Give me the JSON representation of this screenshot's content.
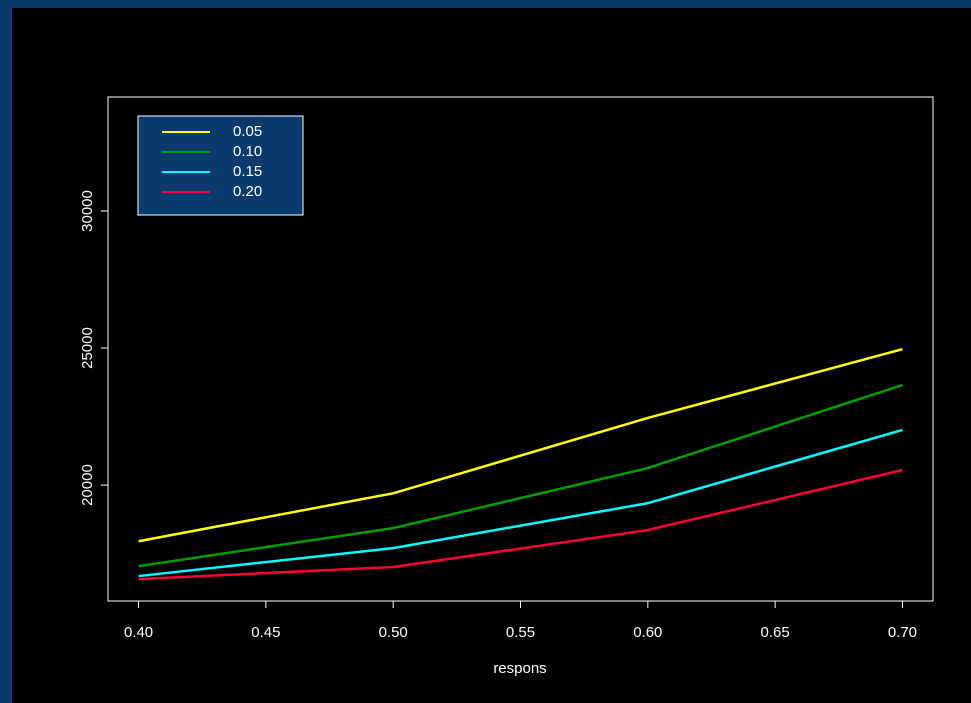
{
  "chart_data": {
    "type": "line",
    "xlabel": "respons",
    "x": [
      0.4,
      0.5,
      0.6,
      0.7
    ],
    "series": [
      {
        "name": "0.05",
        "color": "#ffff00",
        "values": [
          17950,
          19700,
          22450,
          24960
        ]
      },
      {
        "name": "0.10",
        "color": "#00a000",
        "values": [
          17040,
          18430,
          20620,
          23650
        ]
      },
      {
        "name": "0.15",
        "color": "#00ffff",
        "values": [
          16680,
          17700,
          19340,
          22010
        ]
      },
      {
        "name": "0.20",
        "color": "#ff0033",
        "values": [
          16570,
          17010,
          18360,
          20550
        ]
      }
    ],
    "xlim": [
      0.388,
      0.712
    ],
    "xticks": [
      {
        "value": 0.4,
        "label": "0.40"
      },
      {
        "value": 0.45,
        "label": "0.45"
      },
      {
        "value": 0.5,
        "label": "0.50"
      },
      {
        "value": 0.55,
        "label": "0.55"
      },
      {
        "value": 0.6,
        "label": "0.60"
      },
      {
        "value": 0.65,
        "label": "0.65"
      },
      {
        "value": 0.7,
        "label": "0.70"
      }
    ],
    "ylim": [
      15770,
      34160
    ],
    "yticks": [
      20000,
      25000,
      30000
    ],
    "legend": "top-left"
  }
}
